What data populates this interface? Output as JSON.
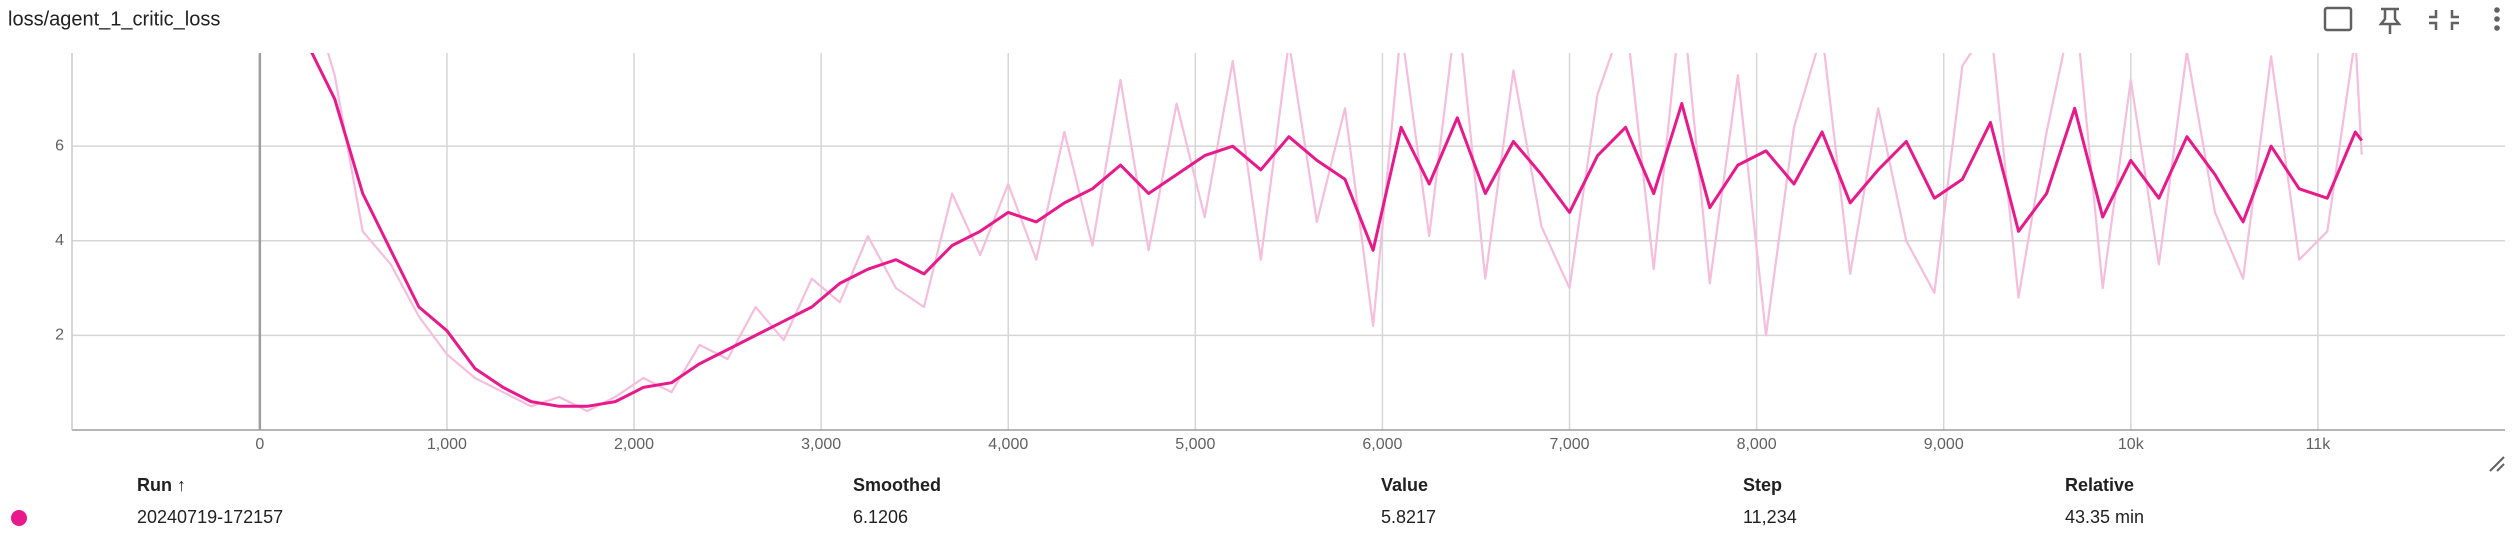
{
  "chart_data": {
    "type": "line",
    "title": "loss/agent_1_critic_loss",
    "x": [
      250,
      400,
      550,
      700,
      850,
      1000,
      1150,
      1300,
      1450,
      1600,
      1750,
      1900,
      2050,
      2200,
      2350,
      2500,
      2650,
      2800,
      2950,
      3100,
      3250,
      3400,
      3550,
      3700,
      3850,
      4000,
      4150,
      4300,
      4450,
      4600,
      4750,
      4900,
      5050,
      5200,
      5350,
      5500,
      5650,
      5800,
      5950,
      6100,
      6250,
      6400,
      6550,
      6700,
      6850,
      7000,
      7150,
      7300,
      7450,
      7600,
      7750,
      7900,
      8050,
      8200,
      8350,
      8500,
      8650,
      8800,
      8950,
      9100,
      9250,
      9400,
      9550,
      9700,
      9850,
      10000,
      10150,
      10300,
      10450,
      10600,
      10750,
      10900,
      11050,
      11200,
      11234
    ],
    "series": [
      {
        "name": "raw",
        "color": "#f6bddd",
        "values": [
          9.5,
          7.5,
          4.2,
          3.5,
          2.4,
          1.6,
          1.1,
          0.8,
          0.5,
          0.7,
          0.4,
          0.7,
          1.1,
          0.8,
          1.8,
          1.5,
          2.6,
          1.9,
          3.2,
          2.7,
          4.1,
          3.0,
          2.6,
          5.0,
          3.7,
          5.2,
          3.6,
          6.3,
          3.9,
          7.4,
          3.8,
          6.9,
          4.5,
          7.8,
          3.6,
          8.2,
          4.4,
          6.8,
          2.2,
          8.5,
          4.1,
          9.0,
          3.2,
          7.6,
          4.3,
          3.0,
          7.1,
          8.8,
          3.4,
          9.2,
          3.1,
          7.5,
          2.0,
          6.4,
          8.4,
          3.3,
          6.8,
          4.0,
          2.9,
          7.7,
          8.6,
          2.8,
          6.3,
          9.1,
          3.0,
          7.4,
          3.5,
          8.0,
          4.6,
          3.2,
          7.9,
          3.6,
          4.2,
          8.3,
          5.8217
        ]
      },
      {
        "name": "smoothed",
        "color": "#e8198b",
        "values": [
          8.2,
          7.0,
          5.0,
          3.8,
          2.6,
          2.1,
          1.3,
          0.9,
          0.6,
          0.5,
          0.5,
          0.6,
          0.9,
          1.0,
          1.4,
          1.7,
          2.0,
          2.3,
          2.6,
          3.1,
          3.4,
          3.6,
          3.3,
          3.9,
          4.2,
          4.6,
          4.4,
          4.8,
          5.1,
          5.6,
          5.0,
          5.4,
          5.8,
          6.0,
          5.5,
          6.2,
          5.7,
          5.3,
          3.8,
          6.4,
          5.2,
          6.6,
          5.0,
          6.1,
          5.4,
          4.6,
          5.8,
          6.4,
          5.0,
          6.9,
          4.7,
          5.6,
          5.9,
          5.2,
          6.3,
          4.8,
          5.5,
          6.1,
          4.9,
          5.3,
          6.5,
          4.2,
          5.0,
          6.8,
          4.5,
          5.7,
          4.9,
          6.2,
          5.4,
          4.4,
          6.0,
          5.1,
          4.9,
          6.3,
          6.1206
        ]
      }
    ],
    "xlim": [
      -1004,
      12000
    ],
    "ylim": [
      0,
      7.97
    ],
    "xticks": [
      0,
      {
        "value": 1000,
        "label": "1,000"
      },
      {
        "value": 2000,
        "label": "2,000"
      },
      {
        "value": 3000,
        "label": "3,000"
      },
      {
        "value": 4000,
        "label": "4,000"
      },
      {
        "value": 5000,
        "label": "5,000"
      },
      {
        "value": 6000,
        "label": "6,000"
      },
      {
        "value": 7000,
        "label": "7,000"
      },
      {
        "value": 8000,
        "label": "8,000"
      },
      {
        "value": 9000,
        "label": "9,000"
      },
      {
        "value": 10000,
        "label": "10k"
      },
      {
        "value": 11000,
        "label": "11k"
      }
    ],
    "yticks": [
      2,
      4,
      6
    ],
    "grid": true
  },
  "table": {
    "header": [
      "Run ↑",
      "Smoothed",
      "Value",
      "Step",
      "Relative"
    ],
    "rows": [
      [
        "20240719-172157",
        "6.1206",
        "5.8217",
        "11,234",
        "43.35 min"
      ]
    ],
    "dot_color": "#e8198b"
  }
}
